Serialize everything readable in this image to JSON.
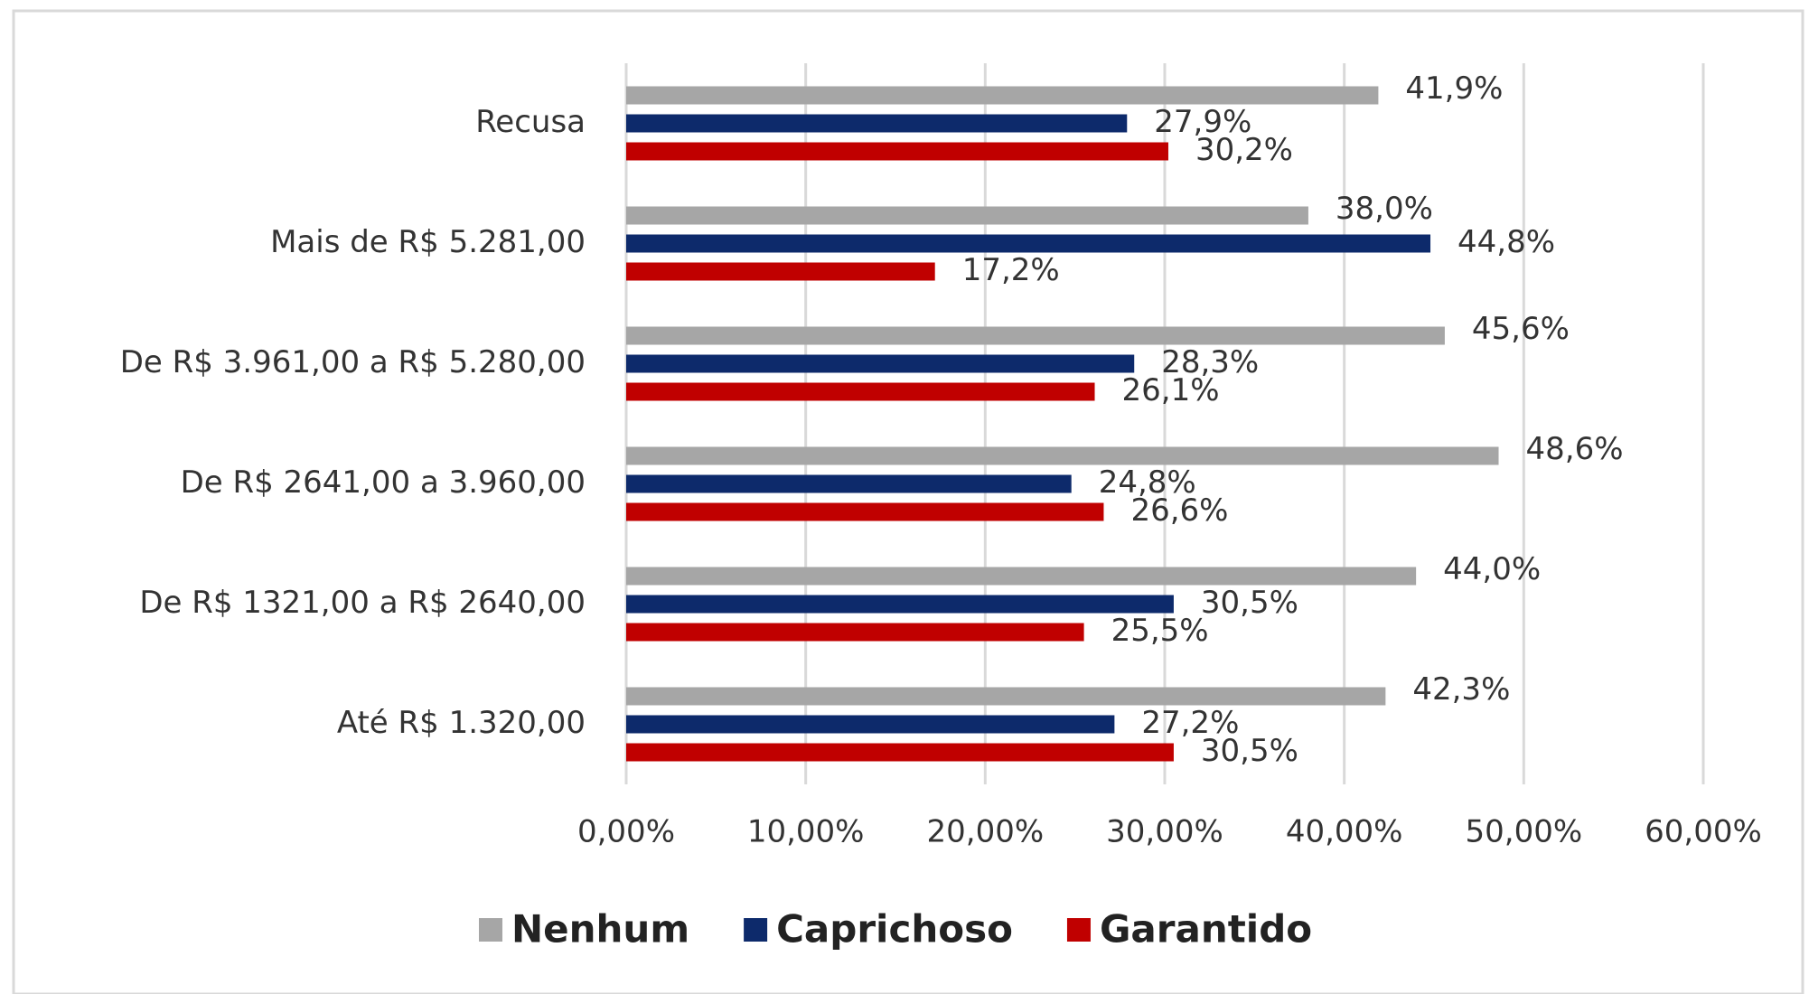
{
  "chart_data": {
    "type": "hbar",
    "categories": [
      "Recusa",
      "Mais de R$ 5.281,00",
      "De R$ 3.961,00 a R$ 5.280,00",
      "De R$ 2641,00 a 3.960,00",
      "De R$ 1321,00 a R$ 2640,00",
      "Até R$ 1.320,00"
    ],
    "series": [
      {
        "name": "Nenhum",
        "color": "#a6a6a6",
        "values": [
          41.9,
          38.0,
          45.6,
          48.6,
          44.0,
          42.3
        ],
        "value_labels": [
          "41,9%",
          "38,0%",
          "45,6%",
          "48,6%",
          "44,0%",
          "42,3%"
        ]
      },
      {
        "name": "Caprichoso",
        "color": "#0d2a6b",
        "values": [
          27.9,
          44.8,
          28.3,
          24.8,
          30.5,
          27.2
        ],
        "value_labels": [
          "27,9%",
          "44,8%",
          "28,3%",
          "24,8%",
          "30,5%",
          "27,2%"
        ]
      },
      {
        "name": "Garantido",
        "color": "#c00000",
        "values": [
          30.2,
          17.2,
          26.1,
          26.6,
          25.5,
          30.5
        ],
        "value_labels": [
          "30,2%",
          "17,2%",
          "26,1%",
          "26,6%",
          "25,5%",
          "30,5%"
        ]
      }
    ],
    "xlim": [
      0,
      60
    ],
    "xticks": [
      {
        "value": 0,
        "label": "0,00%"
      },
      {
        "value": 10,
        "label": "10,00%"
      },
      {
        "value": 20,
        "label": "20,00%"
      },
      {
        "value": 30,
        "label": "30,00%"
      },
      {
        "value": 40,
        "label": "40,00%"
      },
      {
        "value": 50,
        "label": "50,00%"
      },
      {
        "value": 60,
        "label": "60,00%"
      }
    ],
    "grid": true,
    "legend": "bottom"
  }
}
